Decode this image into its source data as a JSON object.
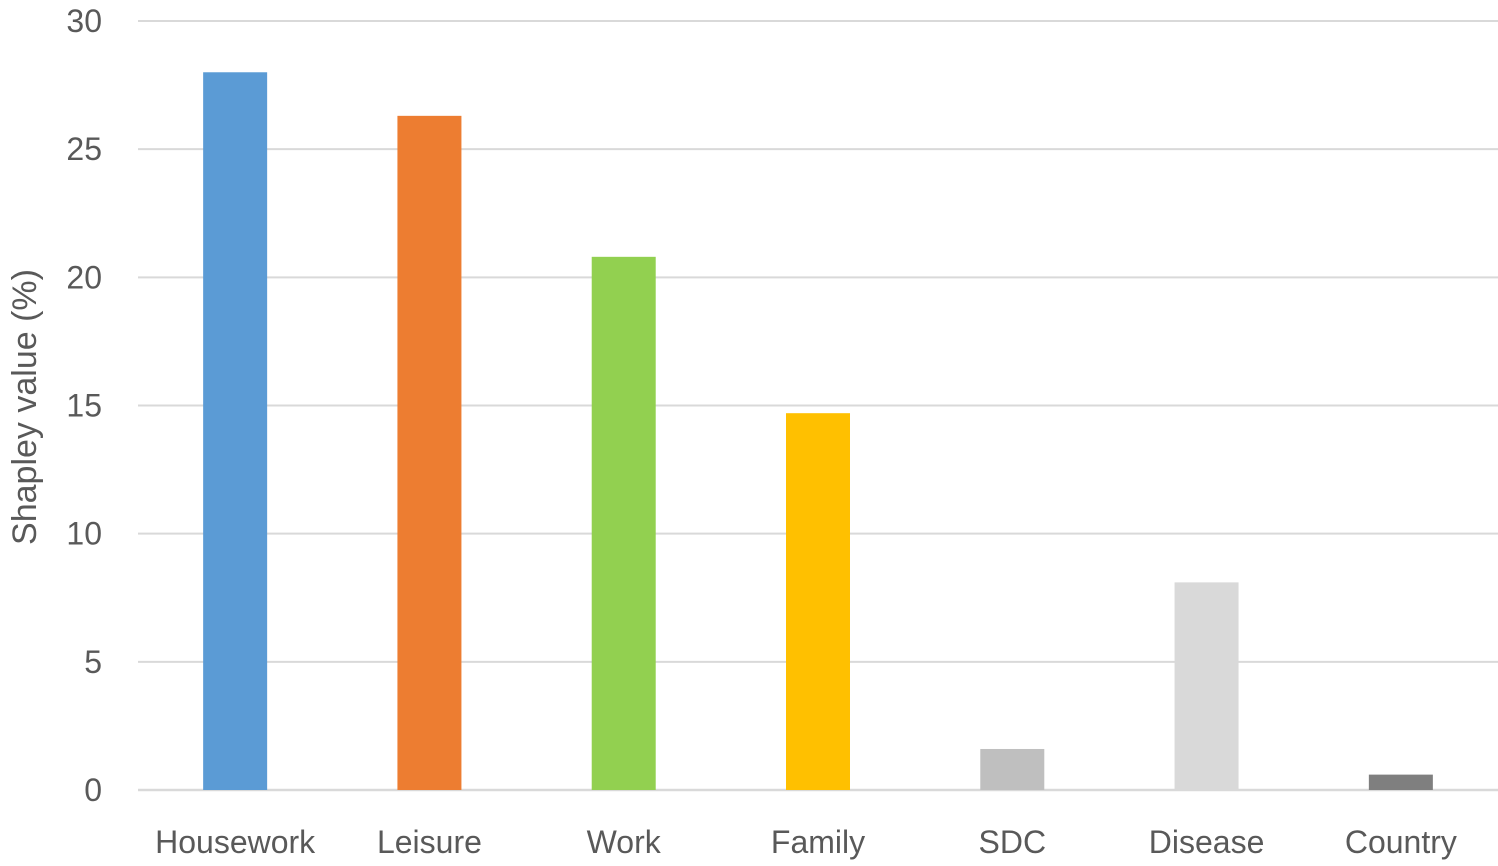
{
  "chart_data": {
    "type": "bar",
    "title": "",
    "xlabel": "",
    "ylabel": "Shapley value (%)",
    "ylim": [
      0,
      30
    ],
    "yticks": [
      0,
      5,
      10,
      15,
      20,
      25,
      30
    ],
    "grid": true,
    "legend": "none",
    "categories": [
      "Housework",
      "Leisure",
      "Work",
      "Family",
      "SDC",
      "Disease",
      "Country"
    ],
    "values": [
      28.0,
      26.3,
      20.8,
      14.7,
      1.6,
      8.1,
      0.6
    ],
    "colors": [
      "#5b9bd5",
      "#ed7d31",
      "#92d050",
      "#ffc000",
      "#bfbfbf",
      "#d9d9d9",
      "#7f7f7f"
    ]
  }
}
